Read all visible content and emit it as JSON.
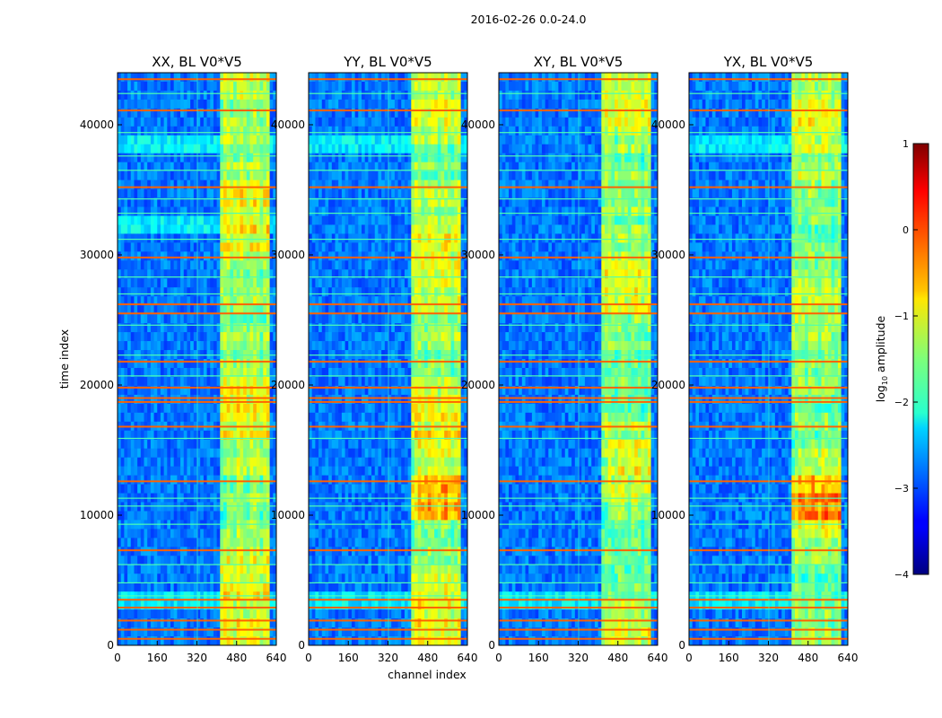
{
  "figure": {
    "suptitle": "2016-02-26 0.0-24.0"
  },
  "chart_data": {
    "type": "heatmap",
    "title": "2016-02-26 0.0-24.0",
    "xlabel": "channel index",
    "ylabel": "time index",
    "xlim": [
      0,
      640
    ],
    "ylim": [
      0,
      44000
    ],
    "xticks": [
      0,
      160,
      320,
      480,
      640
    ],
    "yticks": [
      0,
      10000,
      20000,
      30000,
      40000
    ],
    "panels": [
      {
        "title": "XX, BL V0*V5",
        "key": "xx"
      },
      {
        "title": "YY, BL V0*V5",
        "key": "yy"
      },
      {
        "title": "XY, BL V0*V5",
        "key": "xy"
      },
      {
        "title": "YX, BL V0*V5",
        "key": "yx"
      }
    ],
    "colorbar": {
      "label": "log10 amplitude",
      "label_base": "log",
      "label_sub": "10",
      "label_rest": " amplitude",
      "range": [
        -4,
        1
      ],
      "ticks": [
        1,
        0,
        -1,
        -2,
        -3,
        -4
      ],
      "colormap": "jet"
    },
    "band_channels": [
      410,
      610
    ],
    "strong_rfi_rows": [
      500,
      1200,
      1900,
      2900,
      3500,
      7300,
      12600,
      16800,
      18700,
      19000,
      19800,
      21800,
      25500,
      26200,
      29800,
      35200,
      41100,
      43500
    ],
    "weak_rfi_rows": [
      3800,
      4800,
      6200,
      9300,
      10700,
      11300,
      15900,
      20700,
      22300,
      24600,
      27000,
      28300,
      31200,
      33200,
      34300,
      36500,
      37600,
      39400,
      42400
    ],
    "background_level": -2.8,
    "band_level": -1.4
  }
}
